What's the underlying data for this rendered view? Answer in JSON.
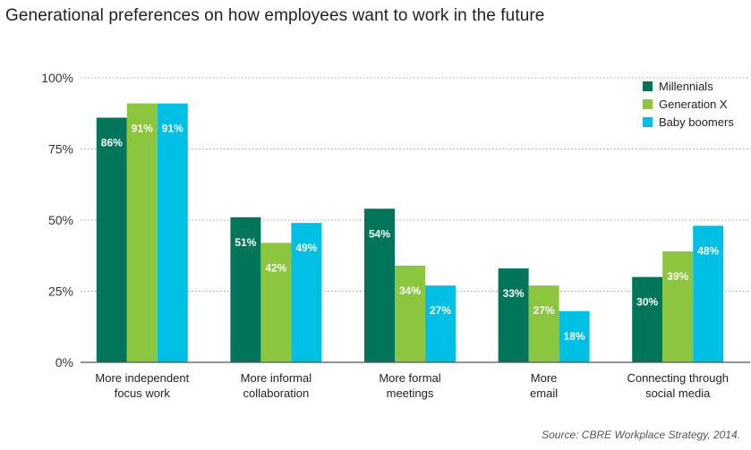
{
  "chart_data": {
    "type": "bar",
    "title": "Generational preferences on how employees want to work in the future",
    "categories": [
      [
        "More independent",
        "focus work"
      ],
      [
        "More informal",
        "collaboration"
      ],
      [
        "More formal",
        "meetings"
      ],
      [
        "More",
        "email"
      ],
      [
        "Connecting through",
        "social media"
      ]
    ],
    "series": [
      {
        "name": "Millennials",
        "color": "#00755a",
        "values": [
          86,
          51,
          54,
          33,
          30
        ]
      },
      {
        "name": "Generation X",
        "color": "#8cc63f",
        "values": [
          91,
          42,
          34,
          27,
          39
        ]
      },
      {
        "name": "Baby boomers",
        "color": "#00bfe4",
        "values": [
          91,
          49,
          27,
          18,
          48
        ]
      }
    ],
    "value_suffix": "%",
    "yticks": [
      "0%",
      "25%",
      "50%",
      "75%",
      "100%"
    ],
    "ylim": [
      0,
      100
    ],
    "grid": true,
    "legend_position": "top-right",
    "source": "Source: CBRE Workplace Strategy, 2014."
  }
}
